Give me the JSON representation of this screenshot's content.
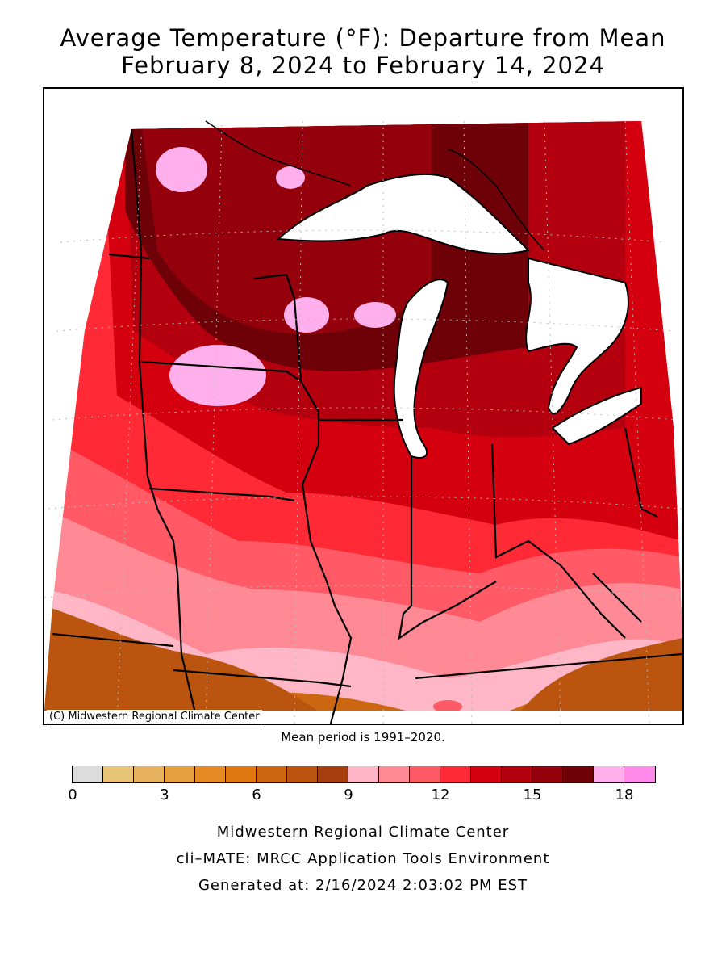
{
  "title": {
    "line1": "Average Temperature (°F): Departure from Mean",
    "line2": "February 8, 2024 to February 14, 2024"
  },
  "map": {
    "copyright": "(C) Midwestern Regional Climate Center",
    "mean_note": "Mean period is 1991–2020."
  },
  "legend": {
    "colors": [
      "#dcdcdc",
      "#e8c478",
      "#e6b25e",
      "#e6a03e",
      "#e68a24",
      "#e07810",
      "#cc6610",
      "#bb540e",
      "#a43e0c",
      "#ffb6c6",
      "#ff8a95",
      "#ff5a66",
      "#ff2a36",
      "#d40010",
      "#b4000e",
      "#94000c",
      "#6e0008",
      "#ffb0ec",
      "#ff8aea"
    ],
    "ticks": [
      "0",
      "3",
      "6",
      "9",
      "12",
      "15",
      "18"
    ]
  },
  "footer": {
    "line1": "Midwestern Regional Climate Center",
    "line2": "cli–MATE: MRCC Application Tools Environment",
    "line3": "Generated at: 2/16/2024 2:03:02 PM EST"
  }
}
